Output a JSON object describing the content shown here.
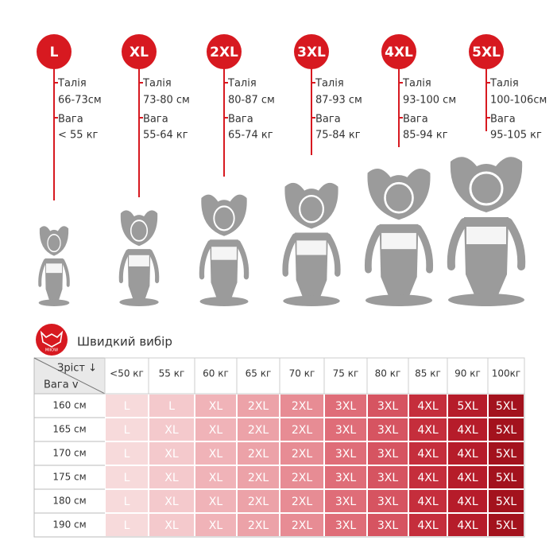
{
  "sizes": [
    {
      "label": "L",
      "waist_label": "Талія",
      "waist": "66-73см",
      "weight_label": "Вага",
      "weight": "< 55 кг"
    },
    {
      "label": "XL",
      "waist_label": "Талія",
      "waist": "73-80 см",
      "weight_label": "Вага",
      "weight": "55-64 кг"
    },
    {
      "label": "2XL",
      "waist_label": "Талія",
      "waist": "80-87 см",
      "weight_label": "Вага",
      "weight": "65-74 кг"
    },
    {
      "label": "3XL",
      "waist_label": "Талія",
      "waist": "87-93 см",
      "weight_label": "Вага",
      "weight": "75-84 кг"
    },
    {
      "label": "4XL",
      "waist_label": "Талія",
      "waist": "93-100 см",
      "weight_label": "Вага",
      "weight": "85-94 кг"
    },
    {
      "label": "5XL",
      "waist_label": "Талія",
      "waist": "100-106см",
      "weight_label": "Вага",
      "weight": "95-105 кг"
    }
  ],
  "logo": "MIIOW",
  "table": {
    "title": "Швидкий вибір",
    "corner_height": "Зріст ↓",
    "corner_weight": "Вага v",
    "columns": [
      "<50 кг",
      "55 кг",
      "60 кг",
      "65 кг",
      "70 кг",
      "75 кг",
      "80 кг",
      "85 кг",
      "90 кг",
      "100кг"
    ],
    "rows": [
      {
        "height": "160 см",
        "cells": [
          "L",
          "L",
          "XL",
          "2XL",
          "2XL",
          "3XL",
          "3XL",
          "4XL",
          "5XL",
          "5XL"
        ]
      },
      {
        "height": "165 см",
        "cells": [
          "L",
          "XL",
          "XL",
          "2XL",
          "2XL",
          "3XL",
          "3XL",
          "4XL",
          "4XL",
          "5XL"
        ]
      },
      {
        "height": "170 см",
        "cells": [
          "L",
          "XL",
          "XL",
          "2XL",
          "2XL",
          "3XL",
          "3XL",
          "4XL",
          "4XL",
          "5XL"
        ]
      },
      {
        "height": "175 см",
        "cells": [
          "L",
          "XL",
          "XL",
          "2XL",
          "2XL",
          "3XL",
          "3XL",
          "4XL",
          "4XL",
          "5XL"
        ]
      },
      {
        "height": "180 см",
        "cells": [
          "L",
          "XL",
          "XL",
          "2XL",
          "2XL",
          "3XL",
          "3XL",
          "4XL",
          "4XL",
          "5XL"
        ]
      },
      {
        "height": "190 см",
        "cells": [
          "L",
          "XL",
          "XL",
          "2XL",
          "2XL",
          "3XL",
          "3XL",
          "4XL",
          "4XL",
          "5XL"
        ]
      }
    ]
  }
}
